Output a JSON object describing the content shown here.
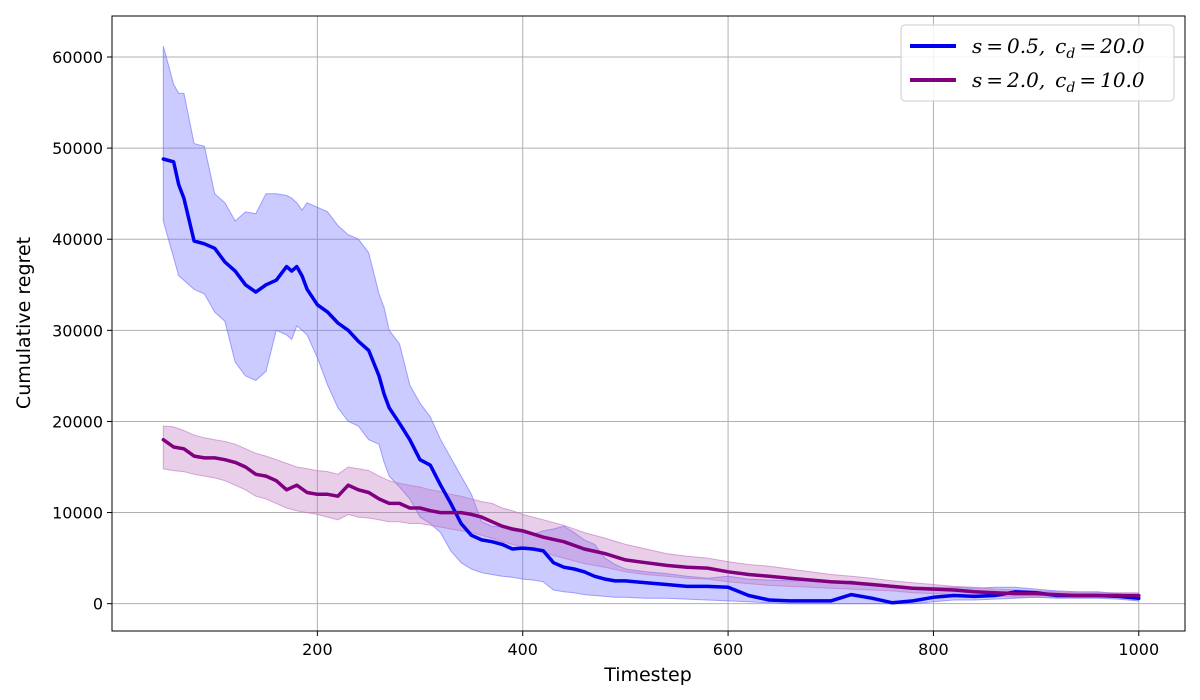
{
  "chart_data": {
    "type": "line",
    "xlabel": "Timestep",
    "ylabel": "Cumulative regret",
    "xlim": [
      0,
      1045
    ],
    "ylim": [
      -3000,
      64500
    ],
    "x_ticks": [
      200,
      400,
      600,
      800,
      1000
    ],
    "y_ticks": [
      0,
      10000,
      20000,
      30000,
      40000,
      50000,
      60000
    ],
    "x_tick_labels": [
      "200",
      "400",
      "600",
      "800",
      "1000"
    ],
    "y_tick_labels": [
      "0",
      "10000",
      "20000",
      "30000",
      "40000",
      "50000",
      "60000"
    ],
    "grid": true,
    "legend_position": "top-right",
    "series": [
      {
        "name": "s = 0.5,  c_d = 20.0",
        "legend_main": "s = 0.5, c",
        "legend_sub": "d",
        "legend_tail": " = 20.0",
        "color": "#0000ee",
        "band_color": "#6b6bff",
        "x": [
          50,
          60,
          65,
          70,
          80,
          90,
          100,
          110,
          120,
          130,
          140,
          150,
          160,
          170,
          175,
          180,
          185,
          190,
          200,
          210,
          220,
          230,
          240,
          250,
          260,
          265,
          270,
          280,
          290,
          300,
          310,
          320,
          330,
          340,
          350,
          360,
          370,
          380,
          390,
          400,
          410,
          420,
          430,
          440,
          450,
          460,
          470,
          480,
          490,
          500,
          520,
          540,
          560,
          580,
          600,
          620,
          640,
          660,
          680,
          700,
          720,
          740,
          760,
          780,
          800,
          820,
          840,
          860,
          880,
          900,
          920,
          940,
          960,
          980,
          1000
        ],
        "y": [
          48800,
          48500,
          46000,
          44500,
          39800,
          39500,
          39000,
          37500,
          36500,
          35000,
          34200,
          35000,
          35500,
          37000,
          36500,
          37000,
          36000,
          34500,
          32800,
          32000,
          30800,
          30000,
          28800,
          27800,
          25000,
          23000,
          21500,
          19800,
          18000,
          15800,
          15200,
          13000,
          11000,
          8800,
          7500,
          7000,
          6800,
          6500,
          6000,
          6100,
          6000,
          5800,
          4500,
          4000,
          3800,
          3500,
          3000,
          2700,
          2500,
          2500,
          2300,
          2100,
          1900,
          1900,
          1800,
          900,
          400,
          300,
          300,
          300,
          1000,
          600,
          100,
          300,
          700,
          900,
          800,
          900,
          1300,
          1200,
          900,
          900,
          900,
          800,
          600
        ],
        "upper": [
          61200,
          57000,
          56000,
          56000,
          50500,
          50200,
          45000,
          44000,
          42000,
          43000,
          42800,
          45000,
          45000,
          44800,
          44500,
          44000,
          43200,
          44000,
          43500,
          43000,
          41500,
          40500,
          40000,
          38500,
          34000,
          32500,
          30000,
          28500,
          24000,
          22000,
          20500,
          18000,
          16000,
          14000,
          12000,
          9000,
          8500,
          8400,
          8000,
          7800,
          7600,
          8000,
          8200,
          8500,
          7800,
          7000,
          6500,
          5000,
          4300,
          3800,
          3500,
          3300,
          3000,
          2800,
          3000,
          2700,
          2600,
          2500,
          2500,
          2300,
          2500,
          2000,
          2000,
          1800,
          1800,
          1800,
          1700,
          1800,
          1800,
          1600,
          1400,
          1300,
          1300,
          1100,
          900
        ],
        "lower": [
          42000,
          38000,
          36000,
          35500,
          34500,
          34000,
          32000,
          31000,
          26500,
          25000,
          24500,
          25500,
          30000,
          29500,
          29000,
          30500,
          30000,
          29500,
          27000,
          24000,
          21500,
          20000,
          19500,
          18000,
          17500,
          15500,
          14000,
          12800,
          11500,
          9500,
          8800,
          7800,
          5800,
          4500,
          3800,
          3400,
          3200,
          3000,
          2900,
          2700,
          2600,
          2400,
          1500,
          1300,
          1200,
          1000,
          900,
          800,
          700,
          700,
          600,
          600,
          500,
          400,
          300,
          200,
          100,
          0,
          0,
          0,
          0,
          0,
          0,
          0,
          200,
          400,
          400,
          500,
          600,
          700,
          600,
          600,
          600,
          500,
          300
        ]
      },
      {
        "name": "s = 2.0,  c_d = 10.0",
        "legend_main": "s = 2.0, c",
        "legend_sub": "d",
        "legend_tail": " = 10.0",
        "color": "#800080",
        "band_color": "#bf73bf",
        "x": [
          50,
          60,
          70,
          80,
          90,
          100,
          110,
          120,
          130,
          140,
          150,
          160,
          170,
          180,
          190,
          200,
          210,
          220,
          230,
          240,
          250,
          260,
          270,
          280,
          290,
          300,
          310,
          320,
          330,
          340,
          350,
          360,
          370,
          380,
          390,
          400,
          420,
          440,
          460,
          480,
          500,
          520,
          540,
          560,
          580,
          600,
          620,
          640,
          660,
          680,
          700,
          720,
          740,
          760,
          780,
          800,
          820,
          840,
          860,
          880,
          900,
          920,
          940,
          960,
          980,
          1000
        ],
        "y": [
          18000,
          17200,
          17000,
          16200,
          16000,
          16000,
          15800,
          15500,
          15000,
          14200,
          14000,
          13500,
          12500,
          13000,
          12200,
          12000,
          12000,
          11800,
          13000,
          12500,
          12200,
          11500,
          11000,
          11000,
          10500,
          10500,
          10200,
          10000,
          10000,
          10000,
          9800,
          9500,
          9000,
          8500,
          8200,
          8000,
          7300,
          6800,
          6000,
          5500,
          4800,
          4500,
          4200,
          4000,
          3900,
          3500,
          3200,
          3000,
          2800,
          2600,
          2400,
          2300,
          2100,
          1900,
          1700,
          1600,
          1500,
          1300,
          1200,
          1100,
          1100,
          1000,
          900,
          900,
          900,
          900
        ],
        "upper": [
          19500,
          19400,
          19000,
          18500,
          18200,
          18000,
          17800,
          17500,
          17000,
          16500,
          16200,
          15800,
          15400,
          15000,
          14800,
          14600,
          14500,
          14200,
          15000,
          14800,
          14600,
          14000,
          13500,
          13200,
          13000,
          12800,
          12500,
          12300,
          12000,
          11800,
          11500,
          11200,
          11000,
          10500,
          10200,
          9800,
          9200,
          8600,
          7800,
          7200,
          6500,
          6000,
          5500,
          5200,
          5000,
          4600,
          4300,
          4100,
          3800,
          3500,
          3200,
          3000,
          2800,
          2500,
          2300,
          2100,
          1900,
          1800,
          1600,
          1500,
          1400,
          1300,
          1200,
          1200,
          1200,
          1200
        ],
        "lower": [
          14800,
          14600,
          14500,
          14200,
          14000,
          13800,
          13500,
          13000,
          12500,
          11800,
          11500,
          11000,
          10500,
          10200,
          10000,
          9800,
          9500,
          9200,
          9800,
          9500,
          9400,
          9200,
          9000,
          9000,
          8800,
          8800,
          8600,
          8400,
          8200,
          8000,
          7800,
          7500,
          7200,
          6800,
          6500,
          6200,
          5600,
          5000,
          4400,
          4000,
          3500,
          3200,
          3000,
          2800,
          2700,
          2400,
          2200,
          2000,
          1900,
          1800,
          1700,
          1600,
          1500,
          1400,
          1200,
          1100,
          1000,
          900,
          800,
          700,
          700,
          700,
          700,
          700,
          700,
          700
        ]
      }
    ]
  }
}
